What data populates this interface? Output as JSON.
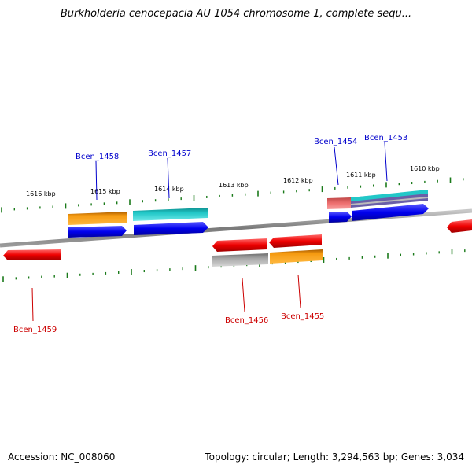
{
  "title": "Burkholderia cenocepacia AU 1054 chromosome 1, complete sequ...",
  "footer": {
    "accession": "Accession: NC_008060",
    "summary": "Topology: circular; Length: 3,294,563 bp; Genes: 3,034"
  },
  "kbp_labels": [
    "1616 kbp",
    "1615 kbp",
    "1614 kbp",
    "1613 kbp",
    "1612 kbp",
    "1611 kbp",
    "1610 kbp"
  ],
  "gene_labels_top": [
    "Bcen_1458",
    "Bcen_1457",
    "Bcen_1454",
    "Bcen_1453"
  ],
  "gene_labels_bottom": [
    "Bcen_1459",
    "Bcen_1456",
    "Bcen_1455"
  ],
  "colors": {
    "forward_label": "#0000cc",
    "reverse_label": "#cc0000",
    "cds_blue": "#0000ee",
    "cds_red": "#ee0000",
    "cog_orange": "#f59a10",
    "cog_cyan": "#22c8c8",
    "cog_grey": "#a8a8a8",
    "cog_pink": "#ee7070",
    "cog_purple": "#6a5fa8",
    "backbone": "#888888",
    "tick": "#1a7a1a"
  }
}
